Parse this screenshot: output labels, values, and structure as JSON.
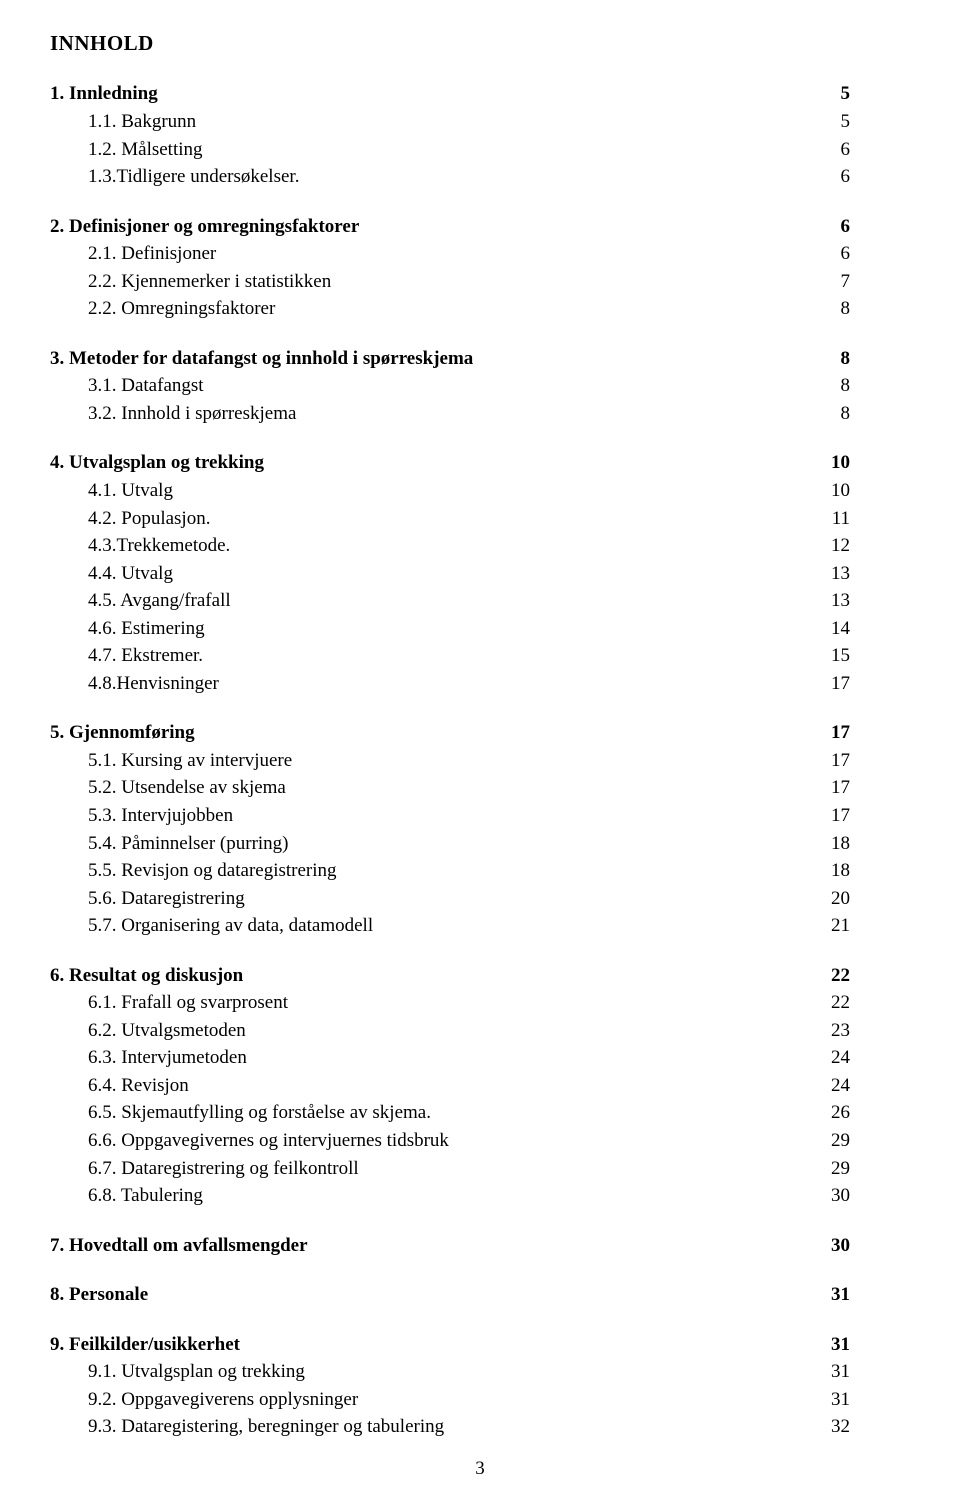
{
  "title": "INNHOLD",
  "pageNumber": "3",
  "sections": [
    {
      "heading": {
        "label": "1. Innledning",
        "page": "5"
      },
      "items": [
        {
          "label": "1.1. Bakgrunn",
          "page": "5"
        },
        {
          "label": "1.2. Målsetting",
          "page": "6"
        },
        {
          "label": "1.3.Tidligere undersøkelser.",
          "page": "6"
        }
      ]
    },
    {
      "heading": {
        "label": "2. Definisjoner og omregningsfaktorer",
        "page": "6"
      },
      "items": [
        {
          "label": "2.1. Definisjoner",
          "page": "6"
        },
        {
          "label": "2.2. Kjennemerker i statistikken",
          "page": "7"
        },
        {
          "label": "2.2. Omregningsfaktorer",
          "page": "8"
        }
      ]
    },
    {
      "heading": {
        "label": "3. Metoder for datafangst og innhold i spørreskjema",
        "page": "8"
      },
      "items": [
        {
          "label": "3.1. Datafangst",
          "page": "8"
        },
        {
          "label": "3.2. Innhold i spørreskjema",
          "page": "8"
        }
      ]
    },
    {
      "heading": {
        "label": "4. Utvalgsplan og trekking",
        "page": "10"
      },
      "items": [
        {
          "label": "4.1. Utvalg",
          "page": "10"
        },
        {
          "label": "4.2. Populasjon.",
          "page": "11"
        },
        {
          "label": "4.3.Trekkemetode.",
          "page": "12"
        },
        {
          "label": "4.4. Utvalg",
          "page": "13"
        },
        {
          "label": "4.5. Avgang/frafall",
          "page": "13"
        },
        {
          "label": "4.6. Estimering",
          "page": "14"
        },
        {
          "label": "4.7. Ekstremer.",
          "page": "15"
        },
        {
          "label": "4.8.Henvisninger",
          "page": "17"
        }
      ]
    },
    {
      "heading": {
        "label": "5. Gjennomføring",
        "page": "17"
      },
      "items": [
        {
          "label": "5.1. Kursing av intervjuere",
          "page": "17"
        },
        {
          "label": "5.2. Utsendelse av skjema",
          "page": "17"
        },
        {
          "label": "5.3. Intervjujobben",
          "page": "17"
        },
        {
          "label": "5.4. Påminnelser (purring)",
          "page": "18"
        },
        {
          "label": "5.5. Revisjon og dataregistrering",
          "page": "18"
        },
        {
          "label": "5.6. Dataregistrering",
          "page": "20"
        },
        {
          "label": "5.7. Organisering av data, datamodell",
          "page": "21"
        }
      ]
    },
    {
      "heading": {
        "label": "6. Resultat og diskusjon",
        "page": "22"
      },
      "items": [
        {
          "label": "6.1. Frafall og svarprosent",
          "page": "22"
        },
        {
          "label": "6.2. Utvalgsmetoden",
          "page": "23"
        },
        {
          "label": "6.3. Intervjumetoden",
          "page": "24"
        },
        {
          "label": "6.4. Revisjon",
          "page": "24"
        },
        {
          "label": "6.5. Skjemautfylling og forståelse av skjema.",
          "page": "26"
        },
        {
          "label": "6.6. Oppgavegivernes og intervjuernes tidsbruk",
          "page": "29"
        },
        {
          "label": "6.7. Dataregistrering og feilkontroll",
          "page": "29"
        },
        {
          "label": "6.8. Tabulering",
          "page": "30"
        }
      ]
    },
    {
      "heading": {
        "label": "7. Hovedtall om avfallsmengder",
        "page": "30"
      },
      "items": []
    },
    {
      "heading": {
        "label": "8. Personale",
        "page": "31"
      },
      "items": []
    },
    {
      "heading": {
        "label": "9. Feilkilder/usikkerhet",
        "page": "31"
      },
      "items": [
        {
          "label": "9.1. Utvalgsplan og trekking",
          "page": "31"
        },
        {
          "label": "9.2. Oppgavegiverens opplysninger",
          "page": "31"
        },
        {
          "label": "9.3. Dataregistering, beregninger og tabulering",
          "page": "32"
        }
      ]
    }
  ]
}
